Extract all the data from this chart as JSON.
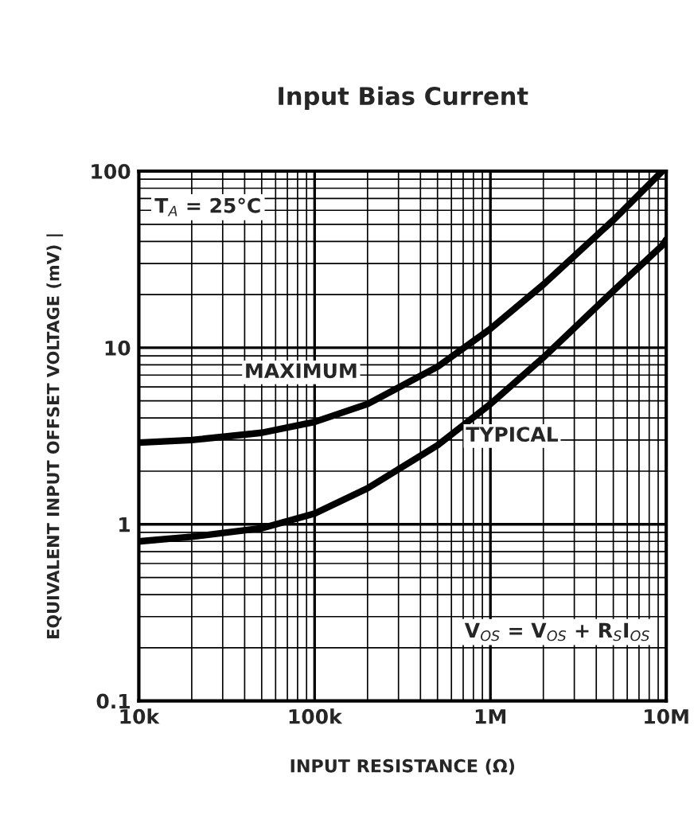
{
  "chart_data": {
    "type": "line",
    "title": "Input Bias Current",
    "xlabel": "INPUT RESISTANCE (Ω)",
    "ylabel": "EQUIVALENT INPUT OFFSET VOLTAGE (mV) |",
    "x": [
      10000,
      20000,
      50000,
      100000,
      200000,
      500000,
      1000000,
      2000000,
      5000000,
      9500000,
      10000000
    ],
    "series": [
      {
        "name": "MAXIMUM",
        "color": "#000000",
        "values": [
          2.9,
          3.0,
          3.3,
          3.8,
          4.8,
          7.8,
          12.8,
          22.8,
          52.8,
          100,
          null
        ]
      },
      {
        "name": "TYPICAL",
        "color": "#000000",
        "values": [
          0.8,
          0.85,
          0.95,
          1.15,
          1.6,
          2.8,
          4.8,
          8.8,
          21,
          38,
          41
        ]
      }
    ],
    "log": "xy",
    "xlim": [
      10000,
      10000000
    ],
    "ylim": [
      0.1,
      100
    ],
    "xticks": [
      {
        "value": 10000,
        "label": "10k"
      },
      {
        "value": 100000,
        "label": "100k"
      },
      {
        "value": 1000000,
        "label": "1M"
      },
      {
        "value": 10000000,
        "label": "10M"
      }
    ],
    "yticks": [
      0.1,
      1,
      10,
      100
    ],
    "grid": true,
    "line_style": "solid",
    "marker": "none",
    "legend": false,
    "annotations": [
      "T$_{A}$ = 25°C",
      "V$_{OS}$ = V$_{OS}$ + R$_{S}$I$_{OS}$"
    ]
  }
}
